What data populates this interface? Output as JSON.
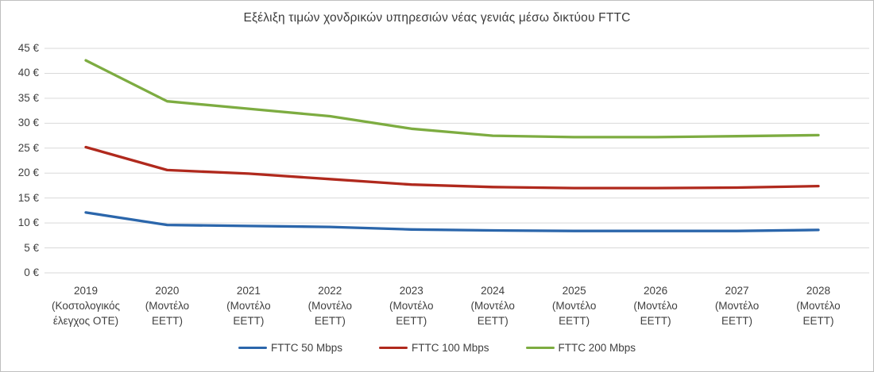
{
  "title": "Εξέλιξη τιμών χονδρικών υπηρεσιών νέας γενιάς μέσω δικτύου FTTC",
  "chart_data": {
    "type": "line",
    "title": "Εξέλιξη τιμών χονδρικών υπηρεσιών νέας γενιάς μέσω δικτύου FTTC",
    "categories": [
      "2019",
      "2020",
      "2021",
      "2022",
      "2023",
      "2024",
      "2025",
      "2026",
      "2027",
      "2028"
    ],
    "category_sublabels": [
      [
        "(Κοστολογικός",
        "έλεγχος ΟΤΕ)"
      ],
      [
        "(Μοντέλο",
        "ΕΕΤΤ)"
      ],
      [
        "(Μοντέλο",
        "ΕΕΤΤ)"
      ],
      [
        "(Μοντέλο",
        "ΕΕΤΤ)"
      ],
      [
        "(Μοντέλο",
        "ΕΕΤΤ)"
      ],
      [
        "(Μοντέλο",
        "ΕΕΤΤ)"
      ],
      [
        "(Μοντέλο",
        "ΕΕΤΤ)"
      ],
      [
        "(Μοντέλο",
        "ΕΕΤΤ)"
      ],
      [
        "(Μοντέλο",
        "ΕΕΤΤ)"
      ],
      [
        "(Μοντέλο",
        "ΕΕΤΤ)"
      ]
    ],
    "series": [
      {
        "name": "FTTC 50 Mbps",
        "color": "#2B66AB",
        "values": [
          12.1,
          9.6,
          9.4,
          9.2,
          8.7,
          8.5,
          8.4,
          8.4,
          8.4,
          8.6
        ]
      },
      {
        "name": "FTTC 100 Mbps",
        "color": "#B0291D",
        "values": [
          25.2,
          20.6,
          19.9,
          18.8,
          17.7,
          17.2,
          17.0,
          17.0,
          17.1,
          17.4
        ]
      },
      {
        "name": "FTTC 200 Mbps",
        "color": "#7DAC41",
        "values": [
          42.6,
          34.4,
          32.9,
          31.4,
          28.9,
          27.5,
          27.2,
          27.2,
          27.4,
          27.6
        ]
      }
    ],
    "xlabel": "",
    "ylabel": "",
    "ylim": [
      0,
      45
    ],
    "ytick_step": 5,
    "ytick_suffix": " €",
    "grid": true,
    "gridline_color": "#d9d9d9",
    "legend_position": "bottom",
    "text_color": "#404040"
  }
}
